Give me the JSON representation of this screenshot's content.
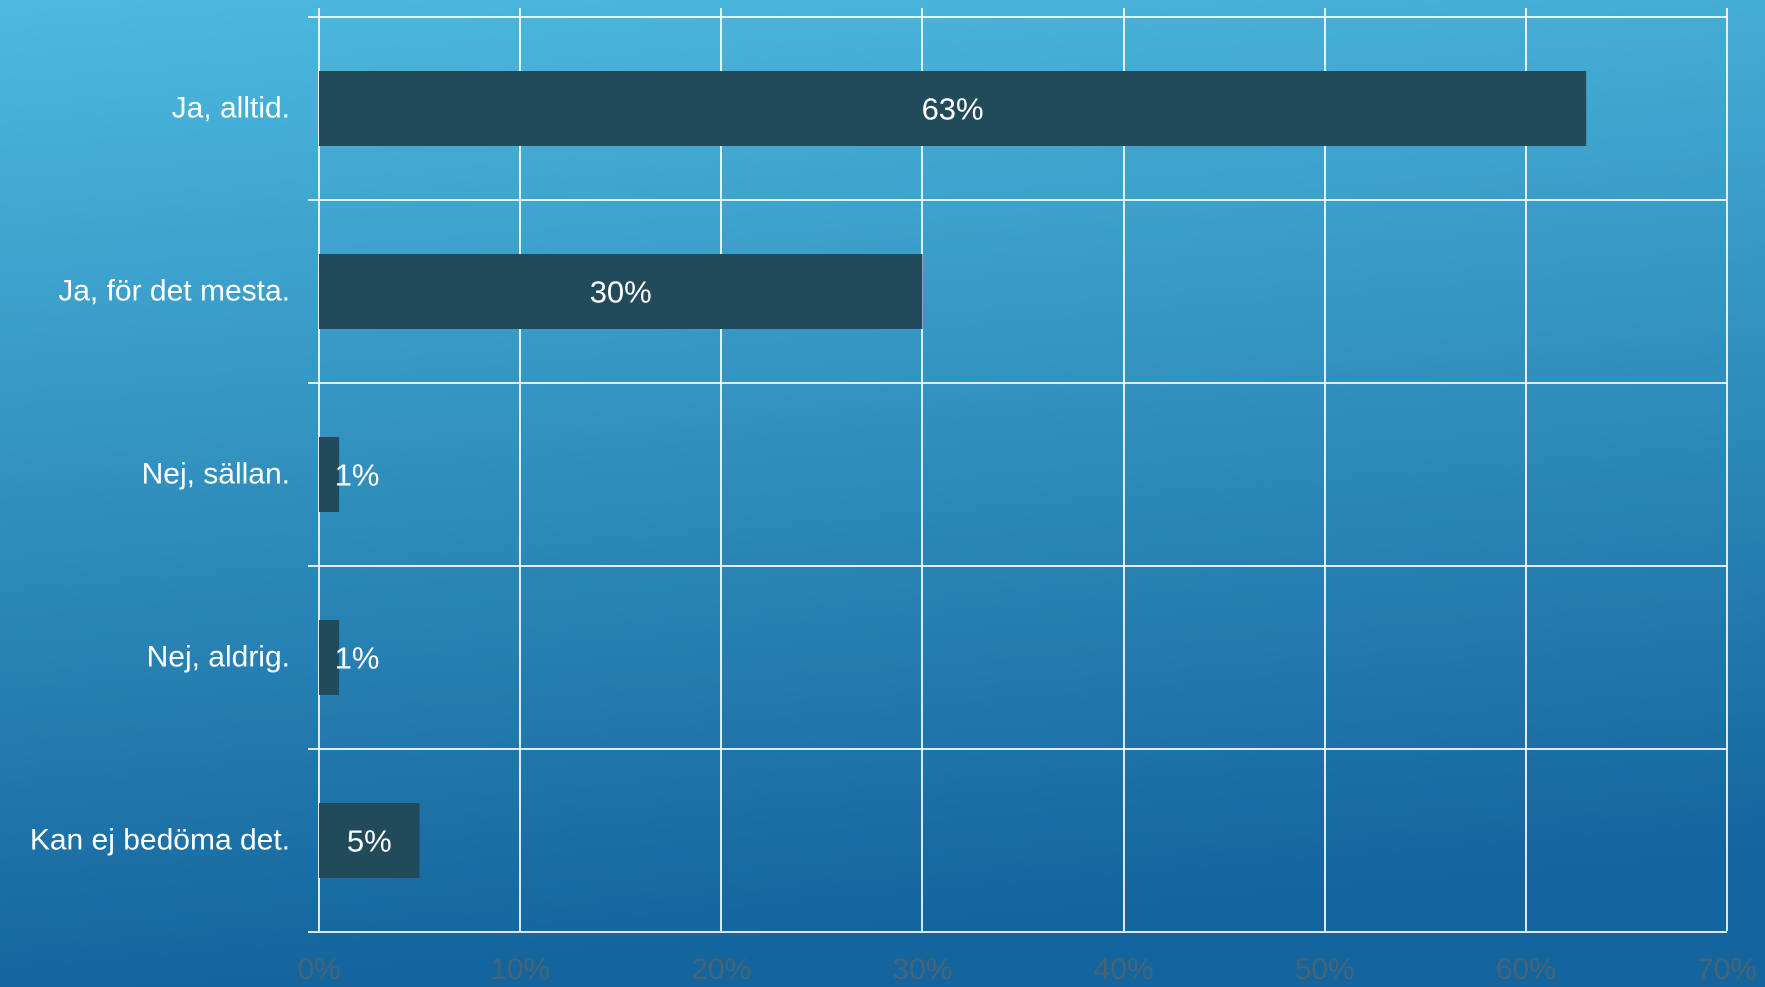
{
  "chart_data": {
    "type": "bar",
    "orientation": "horizontal",
    "categories": [
      "Ja, alltid.",
      "Ja, för det mesta.",
      "Nej, sällan.",
      "Nej, aldrig.",
      "Kan ej bedöma det."
    ],
    "values": [
      63,
      30,
      1,
      1,
      5
    ],
    "value_labels": [
      "63%",
      "30%",
      "1%",
      "1%",
      "5%"
    ],
    "x_ticks": [
      0,
      10,
      20,
      30,
      40,
      50,
      60,
      70
    ],
    "x_tick_labels": [
      "0%",
      "10%",
      "20%",
      "30%",
      "40%",
      "50%",
      "60%",
      "70%"
    ],
    "xlim": [
      0,
      70
    ],
    "grid": true,
    "legend": "none"
  },
  "colors": {
    "bar": "#214b5b",
    "background_top": "#4dbadf",
    "background_bottom": "#14649d",
    "grid": "#ffffff"
  }
}
